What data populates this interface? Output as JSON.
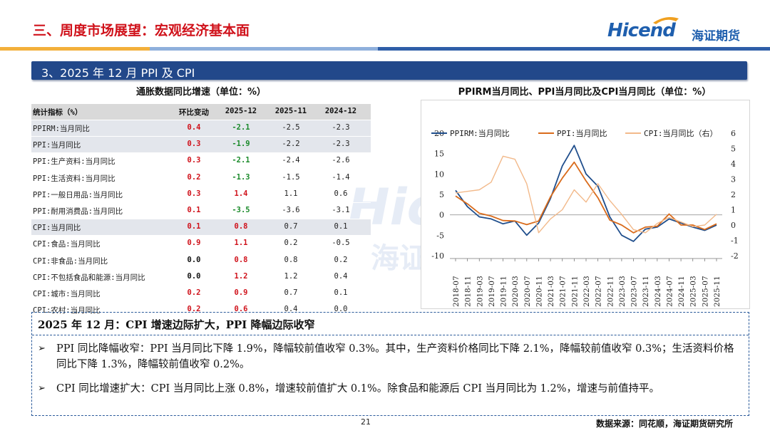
{
  "header": {
    "title": "三、周度市场展望：宏观经济基本面",
    "logo_en": "Hicend",
    "logo_cn": "海证期货"
  },
  "section": {
    "title": "3、2025 年 12 月 PPI 及 CPI"
  },
  "table": {
    "title": "通胀数据同比增速（单位：%）",
    "headers": [
      "统计指标（%）",
      "环比变动",
      "2025-12",
      "2025-11",
      "2024-12"
    ],
    "rows": [
      {
        "name": "PPIRM:当月同比",
        "chg": "0.4",
        "v1": "-2.1",
        "v2": "-2.5",
        "v3": "-2.3"
      },
      {
        "name": "PPI:当月同比",
        "chg": "0.3",
        "v1": "-1.9",
        "v2": "-2.2",
        "v3": "-2.3"
      },
      {
        "name": "PPI:生产资料:当月同比",
        "chg": "0.3",
        "v1": "-2.1",
        "v2": "-2.4",
        "v3": "-2.6"
      },
      {
        "name": "PPI:生活资料:当月同比",
        "chg": "0.2",
        "v1": "-1.3",
        "v2": "-1.5",
        "v3": "-1.4"
      },
      {
        "name": "PPI:一般日用品:当月同比",
        "chg": "0.3",
        "v1": "1.4",
        "v2": "1.1",
        "v3": "0.6"
      },
      {
        "name": "PPI:耐用消费品:当月同比",
        "chg": "0.1",
        "v1": "-3.5",
        "v2": "-3.6",
        "v3": "-3.1"
      },
      {
        "name": "CPI:当月同比",
        "chg": "0.1",
        "v1": "0.8",
        "v2": "0.7",
        "v3": "0.1"
      },
      {
        "name": "CPI:食品:当月同比",
        "chg": "0.9",
        "v1": "1.1",
        "v2": "0.2",
        "v3": "-0.5"
      },
      {
        "name": "CPI:非食品:当月同比",
        "chg": "0.0",
        "v1": "0.8",
        "v2": "0.8",
        "v3": "0.2"
      },
      {
        "name": "CPI:不包括食品和能源:当月同比",
        "chg": "0.0",
        "v1": "1.2",
        "v2": "1.2",
        "v3": "0.4"
      },
      {
        "name": "CPI:城市:当月同比",
        "chg": "0.2",
        "v1": "0.9",
        "v2": "0.7",
        "v3": "0.1"
      },
      {
        "name": "CPI:农村:当月同比",
        "chg": "0.2",
        "v1": "0.6",
        "v2": "0.4",
        "v3": "0.0"
      }
    ]
  },
  "watermark": {
    "en": "Hicend",
    "cn": "海证期货"
  },
  "chart_data": {
    "type": "line",
    "title": "PPIRM当月同比、PPI当月同比及CPI当月同比（单位：%）",
    "x": [
      "2018-07",
      "2018-11",
      "2019-03",
      "2019-07",
      "2019-11",
      "2020-03",
      "2020-07",
      "2020-11",
      "2021-03",
      "2021-07",
      "2021-11",
      "2022-03",
      "2022-07",
      "2022-11",
      "2023-03",
      "2023-07",
      "2023-11",
      "2024-03",
      "2024-07",
      "2024-11",
      "2025-03",
      "2025-07",
      "2025-11"
    ],
    "y_left": {
      "ticks": [
        "20",
        "15",
        "10",
        "5",
        "0",
        "-5",
        "-10"
      ],
      "ylim": [
        -10,
        20
      ]
    },
    "y_right": {
      "ticks": [
        "6",
        "5",
        "4",
        "3",
        "2",
        "1",
        "0",
        "-1",
        "-2"
      ],
      "ylim": [
        -2,
        6
      ]
    },
    "series": [
      {
        "name": "PPIRM:当月同比",
        "axis": "left",
        "color": "#1f4e8c",
        "values": [
          6.0,
          2.0,
          -0.5,
          -1.0,
          -2.2,
          -1.5,
          -5.0,
          -2.0,
          4.0,
          12.0,
          17.0,
          10.0,
          7.0,
          -0.5,
          -5.0,
          -6.5,
          -3.5,
          -3.0,
          -1.0,
          -2.0,
          -3.0,
          -3.8,
          -2.5
        ]
      },
      {
        "name": "PPI:当月同比",
        "axis": "left",
        "color": "#d96b1b",
        "values": [
          4.6,
          2.7,
          0.4,
          -0.3,
          -1.4,
          -1.5,
          -2.4,
          -1.5,
          4.4,
          9.0,
          12.9,
          8.3,
          4.2,
          -1.3,
          -2.5,
          -4.4,
          -3.0,
          -2.8,
          0.2,
          -2.5,
          -2.5,
          -3.6,
          -2.2
        ]
      },
      {
        "name": "CPI:当月同比（右）",
        "axis": "right",
        "color": "#f2b98a",
        "values": [
          2.1,
          2.2,
          2.3,
          2.8,
          4.5,
          4.3,
          2.7,
          -0.5,
          0.4,
          1.0,
          2.3,
          1.5,
          2.7,
          1.6,
          0.7,
          -0.3,
          -0.5,
          0.1,
          0.5,
          0.2,
          -0.1,
          0.0,
          0.7
        ]
      }
    ],
    "legend": "top"
  },
  "summary": {
    "title": "2025 年 12 月：CPI 增速边际扩大，PPI 降幅边际收窄",
    "bullets": [
      "PPI 同比降幅收窄：PPI 当月同比下降 1.9%，降幅较前值收窄 0.3%。其中，生产资料价格同比下降 2.1%，降幅较前值收窄 0.3%；生活资料价格同比下降 1.3%，降幅较前值收窄 0.2%。",
      "CPI 同比增速扩大：CPI 当月同比上涨 0.8%，增速较前值扩大 0.1%。除食品和能源后 CPI 当月同比为 1.2%，增速与前值持平。"
    ]
  },
  "footer": {
    "page": "21",
    "source": "数据来源：同花顺，海证期货研究所"
  }
}
